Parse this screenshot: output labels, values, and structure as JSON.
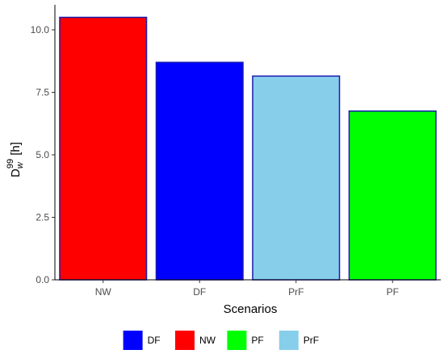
{
  "chart_data": {
    "type": "bar",
    "categories": [
      "NW",
      "DF",
      "PrF",
      "PF"
    ],
    "values": [
      10.5,
      8.7,
      8.15,
      6.75
    ],
    "bar_colors": [
      "#ff0000",
      "#0000ff",
      "#87ceeb",
      "#00ff00"
    ],
    "bar_outline": "#1a1ab0",
    "xlabel": "Scenarios",
    "ylabel": {
      "base": "D",
      "sub": "w",
      "sup": "99",
      "unit": " [h]"
    },
    "ylim": [
      0,
      11
    ],
    "yticks": [
      0.0,
      2.5,
      5.0,
      7.5,
      10.0
    ],
    "ytick_labels": [
      "0.0",
      "2.5",
      "5.0",
      "7.5",
      "10.0"
    ],
    "grid": false,
    "legend": {
      "placement": "bottom",
      "items": [
        {
          "label": "DF",
          "color": "#0000ff"
        },
        {
          "label": "NW",
          "color": "#ff0000"
        },
        {
          "label": "PF",
          "color": "#00ff00"
        },
        {
          "label": "PrF",
          "color": "#87ceeb"
        }
      ]
    }
  }
}
